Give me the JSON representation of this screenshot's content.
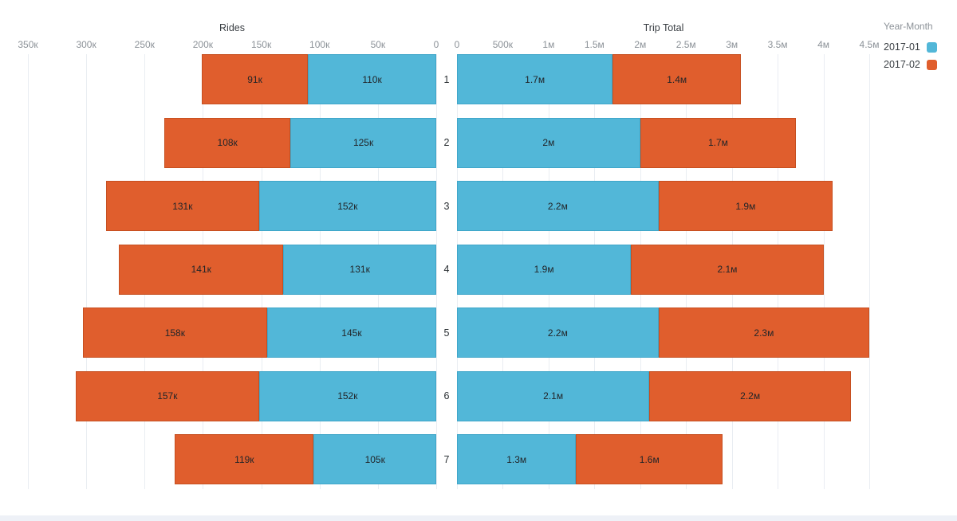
{
  "page": {
    "background": "#ffffff",
    "grid_color": "#e9edf2",
    "bottom_strip_color": "#eef1f7"
  },
  "legend": {
    "title": "Year-Month",
    "items": [
      {
        "label": "2017-01",
        "color": "#52b7d8"
      },
      {
        "label": "2017-02",
        "color": "#e05e2d"
      }
    ]
  },
  "chart_data": {
    "type": "bar",
    "orientation": "horizontal",
    "layout": "butterfly",
    "grid": true,
    "legend_position": "top-right",
    "categories": [
      "1",
      "2",
      "3",
      "4",
      "5",
      "6",
      "7"
    ],
    "category_axis_label": "",
    "panels": [
      {
        "title": "Rides",
        "side": "left",
        "axis": {
          "min": 0,
          "max": 350000,
          "reversed": true,
          "tick_step": 50000,
          "ticks": [
            "350к",
            "300к",
            "250к",
            "200к",
            "150к",
            "100к",
            "50к",
            "0"
          ]
        },
        "series": [
          {
            "name": "2017-01",
            "color": "#52b7d8",
            "border": "#3fa6c9",
            "values": [
              110000,
              125000,
              152000,
              131000,
              145000,
              152000,
              105000
            ],
            "labels": [
              "110к",
              "125к",
              "152к",
              "131к",
              "145к",
              "152к",
              "105к"
            ]
          },
          {
            "name": "2017-02",
            "color": "#e05e2d",
            "border": "#c64f20",
            "values": [
              91000,
              108000,
              131000,
              141000,
              158000,
              157000,
              119000
            ],
            "labels": [
              "91к",
              "108к",
              "131к",
              "141к",
              "158к",
              "157к",
              "119к"
            ]
          }
        ]
      },
      {
        "title": "Trip Total",
        "side": "right",
        "axis": {
          "min": 0,
          "max": 4500000,
          "reversed": false,
          "tick_step": 500000,
          "ticks": [
            "0",
            "500к",
            "1м",
            "1.5м",
            "2м",
            "2.5м",
            "3м",
            "3.5м",
            "4м",
            "4.5м"
          ]
        },
        "series": [
          {
            "name": "2017-01",
            "color": "#52b7d8",
            "border": "#3fa6c9",
            "values": [
              1700000,
              2000000,
              2200000,
              1900000,
              2200000,
              2100000,
              1300000
            ],
            "labels": [
              "1.7м",
              "2м",
              "2.2м",
              "1.9м",
              "2.2м",
              "2.1м",
              "1.3м"
            ]
          },
          {
            "name": "2017-02",
            "color": "#e05e2d",
            "border": "#c64f20",
            "values": [
              1400000,
              1700000,
              1900000,
              2100000,
              2300000,
              2200000,
              1600000
            ],
            "labels": [
              "1.4м",
              "1.7м",
              "1.9м",
              "2.1м",
              "2.3м",
              "2.2м",
              "1.6м"
            ]
          }
        ]
      }
    ]
  }
}
